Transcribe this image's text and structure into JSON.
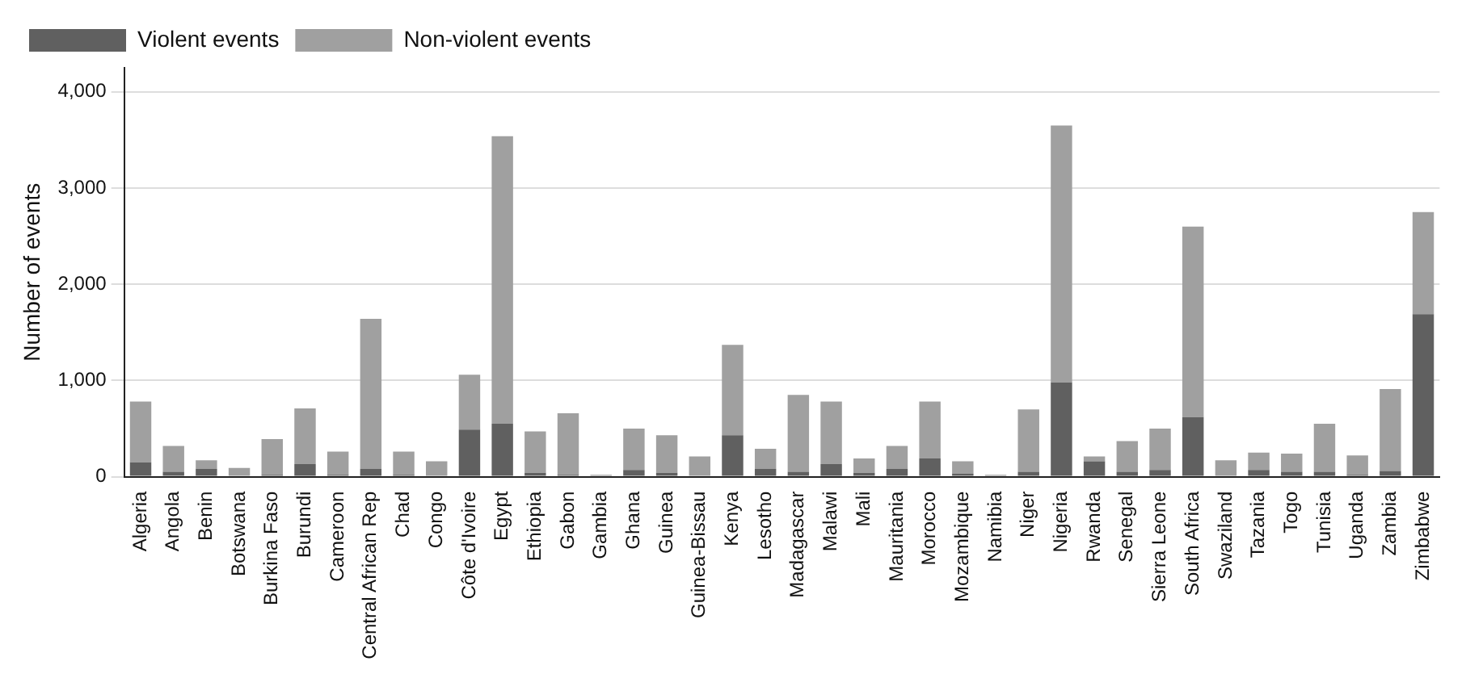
{
  "chart_data": {
    "type": "bar",
    "stacked": true,
    "ylabel": "Number of events",
    "categories": [
      "Algeria",
      "Angola",
      "Benin",
      "Botswana",
      "Burkina Faso",
      "Burundi",
      "Cameroon",
      "Central African Rep",
      "Chad",
      "Congo",
      "Côte d'Ivoire",
      "Egypt",
      "Ethiopia",
      "Gabon",
      "Gambia",
      "Ghana",
      "Guinea",
      "Guinea-Bissau",
      "Kenya",
      "Lesotho",
      "Madagascar",
      "Malawi",
      "Mali",
      "Mauritania",
      "Morocco",
      "Mozambique",
      "Namibia",
      "Niger",
      "Nigeria",
      "Rwanda",
      "Senegal",
      "Sierra Leone",
      "South Africa",
      "Swaziland",
      "Tazania",
      "Togo",
      "Tunisia",
      "Uganda",
      "Zambia",
      "Zimbabwe"
    ],
    "series": [
      {
        "name": "Violent events",
        "color": "#606060",
        "values": [
          150,
          50,
          80,
          null,
          20,
          130,
          20,
          80,
          20,
          null,
          490,
          550,
          40,
          20,
          null,
          70,
          40,
          null,
          430,
          80,
          50,
          130,
          40,
          80,
          190,
          30,
          null,
          50,
          980,
          160,
          50,
          70,
          620,
          null,
          70,
          50,
          50,
          20,
          60,
          1690
        ]
      },
      {
        "name": "Non-violent events",
        "color": "#a0a0a0",
        "values": [
          630,
          270,
          90,
          90,
          370,
          580,
          240,
          1560,
          240,
          160,
          570,
          2990,
          430,
          640,
          20,
          430,
          390,
          210,
          940,
          210,
          800,
          650,
          150,
          240,
          590,
          130,
          20,
          650,
          2670,
          50,
          320,
          430,
          1980,
          170,
          180,
          190,
          500,
          200,
          850,
          1060
        ]
      }
    ],
    "ylim": [
      0,
      4250
    ],
    "yticks": [
      {
        "value": 0,
        "label": "0"
      },
      {
        "value": 1000,
        "label": "1,000"
      },
      {
        "value": 2000,
        "label": "2,000"
      },
      {
        "value": 3000,
        "label": "3,000"
      },
      {
        "value": 4000,
        "label": "4,000"
      }
    ],
    "grid": "y",
    "legend": "top left"
  }
}
